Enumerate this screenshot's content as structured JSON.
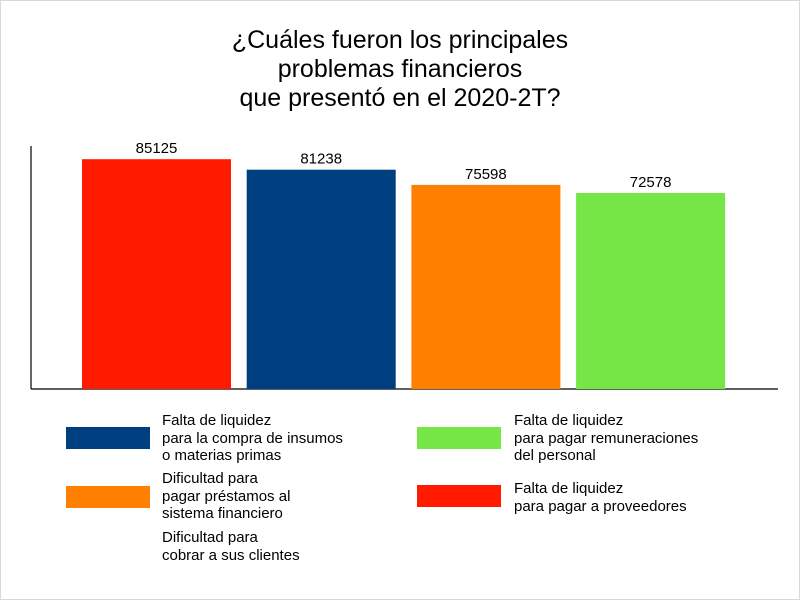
{
  "chart_data": {
    "type": "bar",
    "title_lines": [
      "¿Cuáles fueron los principales",
      "problemas financieros",
      "que presentó en el 2020-2T?"
    ],
    "categories": [
      "Falta de liquidez\npara pagar a proveedores",
      "Falta de liquidez\npara la compra de insumos\no materias primas",
      "Dificultad para\npagar préstamos al\nsistema financiero",
      "Falta de liquidez\npara pagar remuneraciones\ndel personal"
    ],
    "values": [
      85125,
      81238,
      75598,
      72578
    ],
    "colors": [
      "#ff1a00",
      "#003f7f",
      "#ff8000",
      "#75e645"
    ],
    "ylim": [
      0,
      90000
    ],
    "grid": false,
    "legend": [
      {
        "label": "Falta de liquidez\npara la compra de insumos\no materias primas",
        "color": "#003f7f"
      },
      {
        "label": "Falta de liquidez\npara pagar remuneraciones\ndel personal",
        "color": "#75e645"
      },
      {
        "label": "Dificultad para\npagar préstamos al\nsistema financiero",
        "color": "#ff8000"
      },
      {
        "label": "Falta de liquidez\npara pagar a proveedores",
        "color": "#ff1a00"
      },
      {
        "label": "Dificultad para\ncobrar a sus clientes",
        "color": null
      }
    ]
  }
}
